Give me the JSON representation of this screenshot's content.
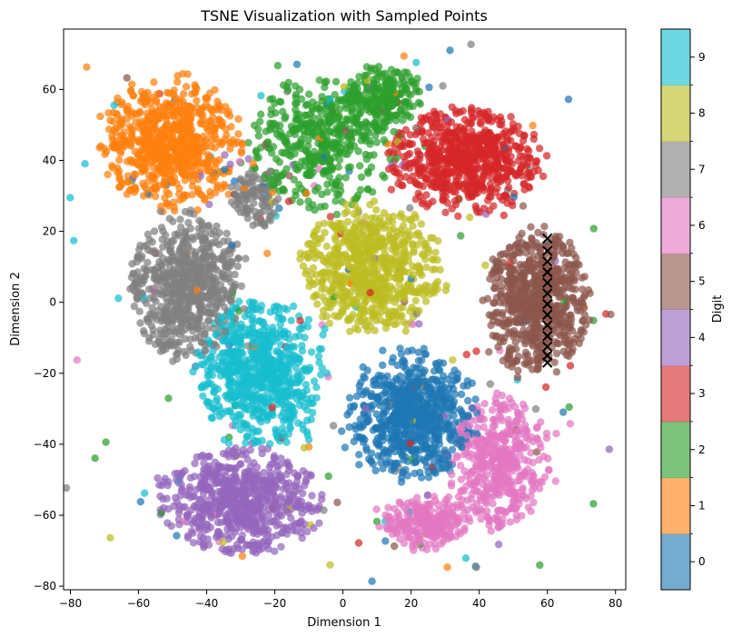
{
  "chart_data": {
    "type": "scatter",
    "title": "TSNE Visualization with Sampled Points",
    "xlabel": "Dimension 1",
    "ylabel": "Dimension 2",
    "xlim": [
      -82,
      83
    ],
    "ylim": [
      -81,
      77
    ],
    "xticks": [
      -80,
      -60,
      -40,
      -20,
      0,
      20,
      40,
      60,
      80
    ],
    "yticks": [
      -80,
      -60,
      -40,
      -20,
      0,
      20,
      40,
      60
    ],
    "grid": false,
    "colorbar": {
      "label": "Digit",
      "ticks": [
        "0",
        "1",
        "2",
        "3",
        "4",
        "5",
        "6",
        "7",
        "8",
        "9"
      ],
      "colors": [
        "#1f77b4",
        "#ff7f0e",
        "#2ca02c",
        "#d62728",
        "#9467bd",
        "#8c564b",
        "#e377c2",
        "#7f7f7f",
        "#bcbd22",
        "#17becf"
      ]
    },
    "clusters": [
      {
        "digit": 0,
        "center": [
          20,
          -32
        ],
        "spread": [
          10,
          10
        ],
        "n": 700
      },
      {
        "digit": 1,
        "center": [
          -50,
          45
        ],
        "spread": [
          11,
          10
        ],
        "n": 700
      },
      {
        "digit": 2,
        "center": [
          -6,
          45
        ],
        "spread": [
          12,
          10
        ],
        "n": 450
      },
      {
        "digit": 2,
        "center": [
          12,
          58
        ],
        "spread": [
          6,
          5
        ],
        "n": 200
      },
      {
        "digit": 3,
        "center": [
          36,
          40
        ],
        "spread": [
          12,
          8
        ],
        "n": 700
      },
      {
        "digit": 4,
        "center": [
          -30,
          -56
        ],
        "spread": [
          13,
          8
        ],
        "n": 700
      },
      {
        "digit": 5,
        "center": [
          57,
          0
        ],
        "spread": [
          8,
          11
        ],
        "n": 700
      },
      {
        "digit": 6,
        "center": [
          46,
          -45
        ],
        "spread": [
          8,
          10
        ],
        "n": 450
      },
      {
        "digit": 6,
        "center": [
          25,
          -62
        ],
        "spread": [
          7,
          4
        ],
        "n": 250
      },
      {
        "digit": 7,
        "center": [
          -46,
          5
        ],
        "spread": [
          9,
          11
        ],
        "n": 650
      },
      {
        "digit": 7,
        "center": [
          -26,
          30
        ],
        "spread": [
          4,
          5
        ],
        "n": 100
      },
      {
        "digit": 8,
        "center": [
          8,
          10
        ],
        "spread": [
          11,
          10
        ],
        "n": 700
      },
      {
        "digit": 9,
        "center": [
          -24,
          -20
        ],
        "spread": [
          10,
          11
        ],
        "n": 700
      }
    ],
    "sampled_points": {
      "marker": "x",
      "color": "#000000",
      "x": [
        60,
        60,
        60,
        60,
        60,
        60,
        60,
        60,
        60,
        60,
        60,
        60,
        60
      ],
      "y": [
        18,
        14.5,
        11.5,
        8.5,
        5.5,
        2.5,
        -0.5,
        -3.5,
        -6.5,
        -9.5,
        -12.5,
        -15,
        -17
      ]
    }
  }
}
